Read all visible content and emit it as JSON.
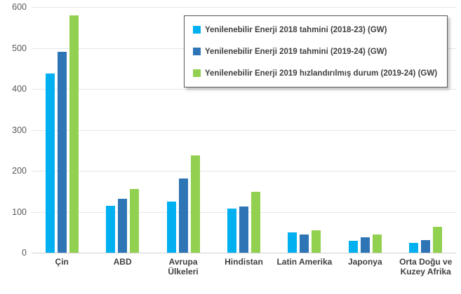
{
  "chart_data": {
    "type": "bar",
    "title": "",
    "xlabel": "",
    "ylabel": "",
    "categories": [
      "Çin",
      "ABD",
      "Avrupa Ülkeleri",
      "Hindistan",
      "Latin Amerika",
      "Japonya",
      "Orta Doğu ve Kuzey Afrika"
    ],
    "series": [
      {
        "name": "Yenilenebilir Enerji 2018 tahmini (2018-23) (GW)",
        "color": "#00B0F0",
        "values": [
          438,
          115,
          124,
          107,
          49,
          29,
          24
        ]
      },
      {
        "name": "Yenilenebilir Enerji 2019 tahmini (2019-24) (GW)",
        "color": "#2E75B6",
        "values": [
          490,
          131,
          182,
          112,
          45,
          38,
          30
        ]
      },
      {
        "name": "Yenilenebilir Enerji 2019 hızlandırılmış durum (2019-24) (GW)",
        "color": "#92D050",
        "values": [
          580,
          156,
          237,
          148,
          55,
          45,
          63
        ]
      }
    ],
    "ylim": [
      0,
      600
    ],
    "yticks": [
      0,
      100,
      200,
      300,
      400,
      500,
      600
    ],
    "grid": "horizontal",
    "legend_position": "top-right"
  },
  "style_colors": {
    "gridline": "#e6e6e6",
    "axis_text": "#595959",
    "category_text": "#404040",
    "legend_border": "#595959"
  }
}
